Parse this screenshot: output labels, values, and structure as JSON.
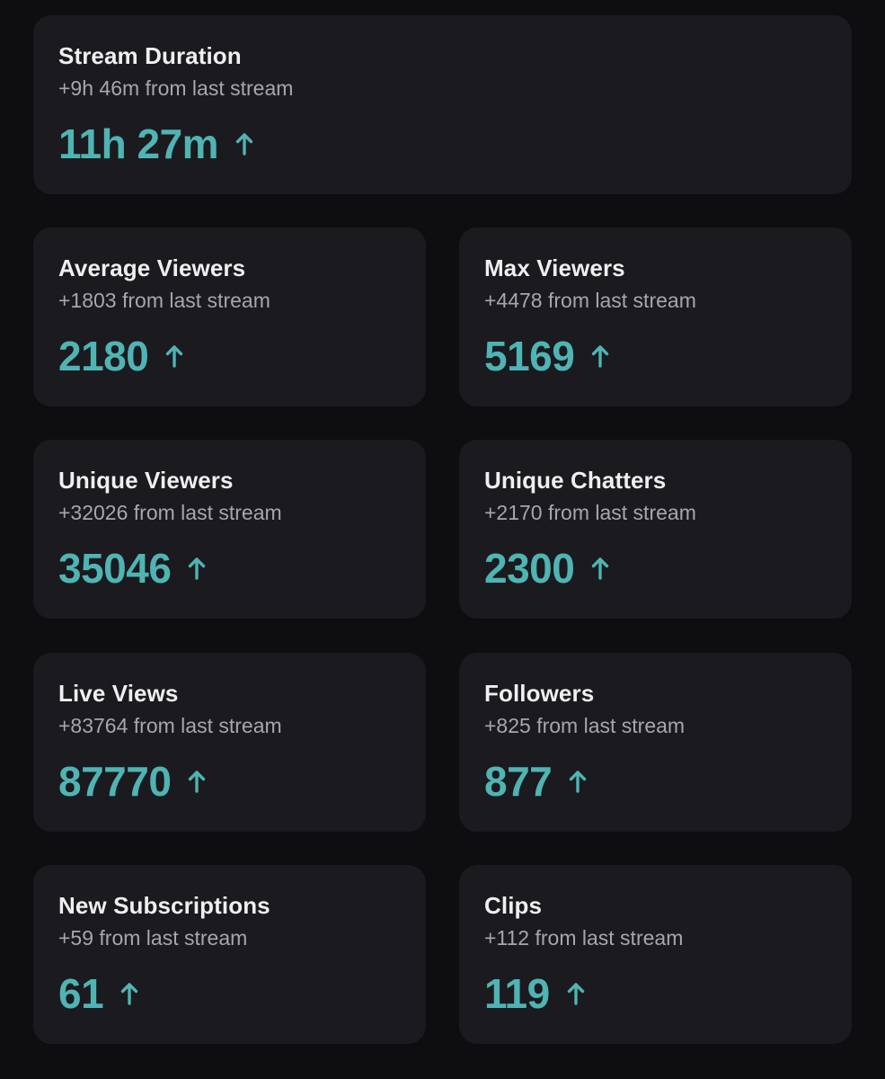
{
  "colors": {
    "background": "#0e0e10",
    "card": "#1a1a1f",
    "accent": "#4fb4b3",
    "title": "#efeff1",
    "muted": "#a6a6ad"
  },
  "trend_icon": "arrow-up-icon",
  "stats": [
    {
      "title": "Stream Duration",
      "delta": "+9h 46m from last stream",
      "value": "11h 27m",
      "trend": "up"
    },
    {
      "title": "Average Viewers",
      "delta": "+1803 from last stream",
      "value": "2180",
      "trend": "up"
    },
    {
      "title": "Max Viewers",
      "delta": "+4478 from last stream",
      "value": "5169",
      "trend": "up"
    },
    {
      "title": "Unique Viewers",
      "delta": "+32026 from last stream",
      "value": "35046",
      "trend": "up"
    },
    {
      "title": "Unique Chatters",
      "delta": "+2170 from last stream",
      "value": "2300",
      "trend": "up"
    },
    {
      "title": "Live Views",
      "delta": "+83764 from last stream",
      "value": "87770",
      "trend": "up"
    },
    {
      "title": "Followers",
      "delta": "+825 from last stream",
      "value": "877",
      "trend": "up"
    },
    {
      "title": "New Subscriptions",
      "delta": "+59 from last stream",
      "value": "61",
      "trend": "up"
    },
    {
      "title": "Clips",
      "delta": "+112 from last stream",
      "value": "119",
      "trend": "up"
    }
  ]
}
